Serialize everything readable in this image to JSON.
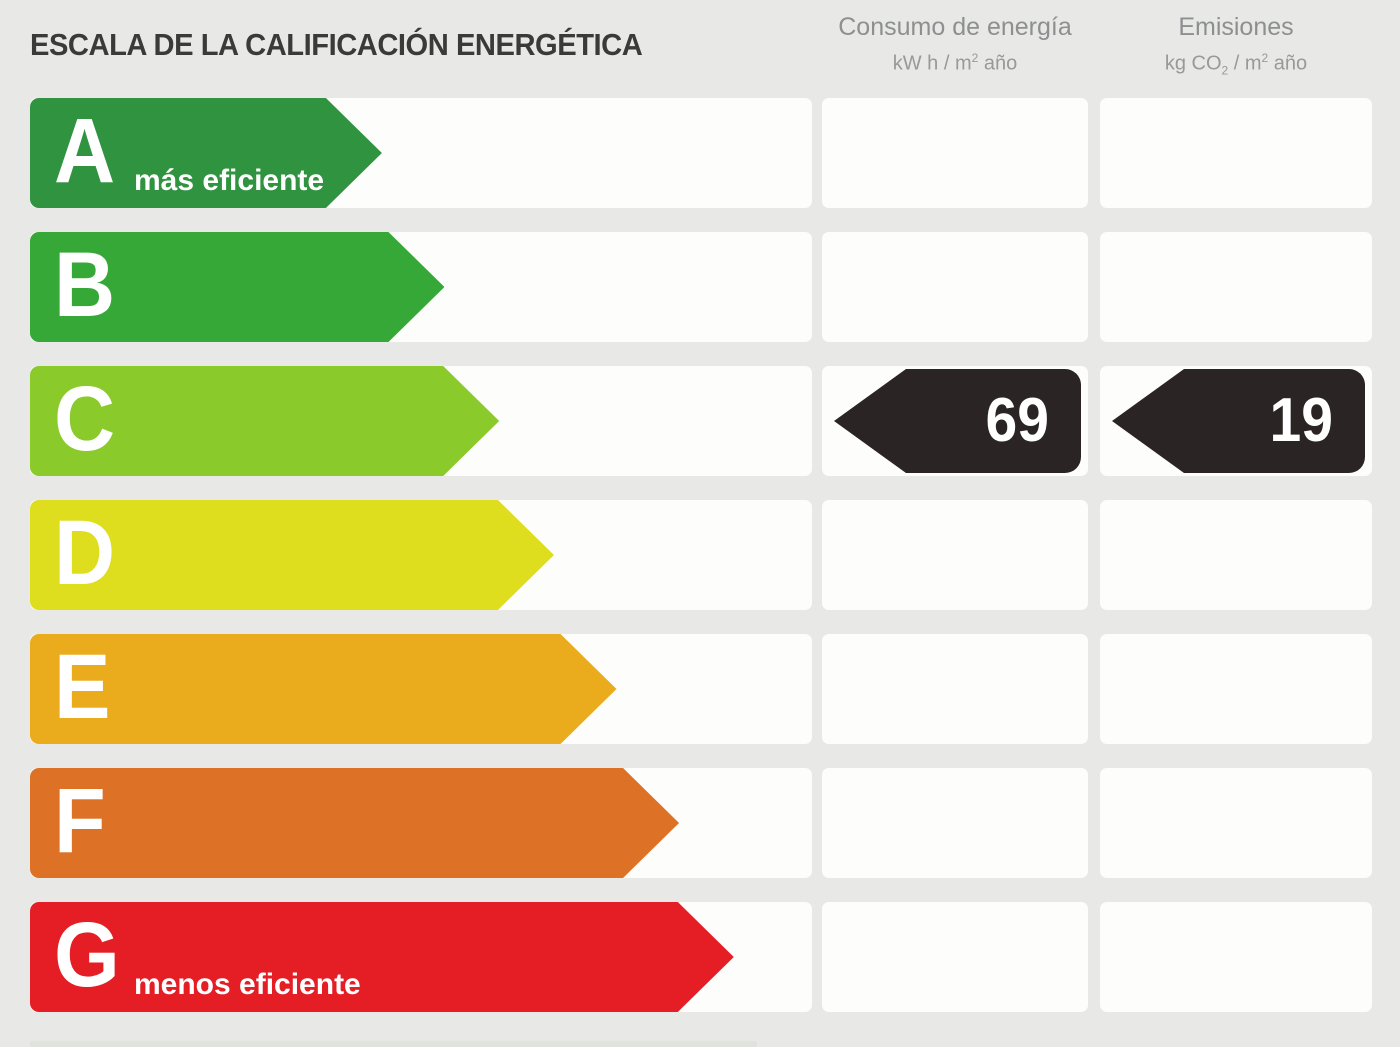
{
  "title": "ESCALA DE LA CALIFICACIÓN ENERGÉTICA",
  "colors": {
    "background": "#e8e9e6",
    "panel": "#fdfdfc",
    "badge": "#2a2524",
    "title_text": "#3a3a3a",
    "header_text": "#8d8f90"
  },
  "header": {
    "consumption": {
      "label": "Consumo de energía",
      "unit_a": "kW h / m",
      "unit_sup": "2",
      "unit_b": " año"
    },
    "emissions": {
      "label": "Emisiones",
      "unit_a": "kg CO",
      "unit_sub": "2",
      "unit_b": " / m",
      "unit_sup": "2",
      "unit_c": " año"
    }
  },
  "ratings": [
    {
      "letter": "A",
      "note": "más eficiente",
      "color": "#2f9340",
      "width_pct": 45
    },
    {
      "letter": "B",
      "note": "",
      "color": "#35a837",
      "width_pct": 53
    },
    {
      "letter": "C",
      "note": "",
      "color": "#8bca2b",
      "width_pct": 60
    },
    {
      "letter": "D",
      "note": "",
      "color": "#dedd1e",
      "width_pct": 67
    },
    {
      "letter": "E",
      "note": "",
      "color": "#eaab1d",
      "width_pct": 75
    },
    {
      "letter": "F",
      "note": "",
      "color": "#dd7227",
      "width_pct": 83
    },
    {
      "letter": "G",
      "note": "menos eficiente",
      "color": "#e51e26",
      "width_pct": 90
    }
  ],
  "current": {
    "rating_letter": "C",
    "consumption_value": "69",
    "emissions_value": "19"
  },
  "chart_data": {
    "type": "bar",
    "categories": [
      "A",
      "B",
      "C",
      "D",
      "E",
      "F",
      "G"
    ],
    "series": [
      {
        "name": "scale_bar_width_pct",
        "values": [
          45,
          53,
          60,
          67,
          75,
          83,
          90
        ]
      }
    ],
    "bar_colors": [
      "#2f9340",
      "#35a837",
      "#8bca2b",
      "#dedd1e",
      "#eaab1d",
      "#dd7227",
      "#e51e26"
    ],
    "title": "ESCALA DE LA CALIFICACIÓN ENERGÉTICA",
    "xlabel": "",
    "ylabel": "",
    "legend": [
      "Consumo de energía kW h / m2 año",
      "Emisiones kg CO2 / m2 año"
    ],
    "annotations": {
      "rating": "C",
      "consumo_de_energia_kwh_m2_ano": 69,
      "emisiones_kg_co2_m2_ano": 19,
      "best_label": "más eficiente",
      "worst_label": "menos eficiente"
    }
  }
}
